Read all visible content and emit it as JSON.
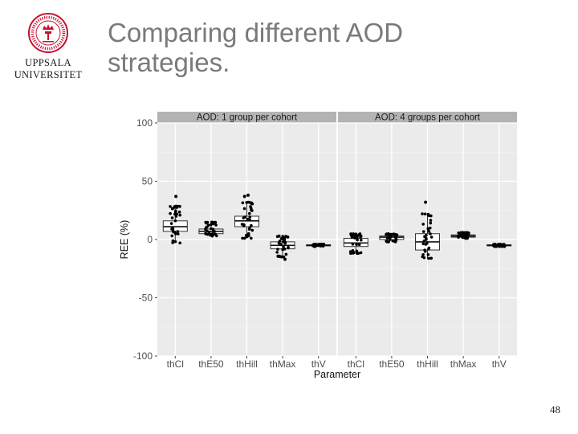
{
  "slide": {
    "title_lines": [
      "Comparing different AOD",
      "strategies."
    ],
    "slide_number": "48"
  },
  "logo": {
    "line1": "UPPSALA",
    "line2": "UNIVERSITET",
    "seal_color": "#c8102e"
  },
  "chart_data": {
    "type": "box",
    "xlabel": "Parameter",
    "ylabel": "REE (%)",
    "ylim": [
      -100,
      100
    ],
    "yticks": [
      -100,
      -50,
      0,
      50,
      100
    ],
    "categories": [
      "thCl",
      "thE50",
      "thHill",
      "thMax",
      "thV"
    ],
    "colors": {
      "panel_bg": "#ebebeb",
      "strip_bg": "#b3b3b3",
      "grid": "#ffffff",
      "box_fill": "#ffffff",
      "points": "#000000"
    },
    "panels": [
      {
        "strip": "AOD: 1 group per cohort",
        "boxes": [
          {
            "category": "thCl",
            "q1": 7,
            "median": 11,
            "q3": 16,
            "whisker_low": -3,
            "whisker_high": 29,
            "outliers": [
              37
            ]
          },
          {
            "category": "thE50",
            "q1": 5,
            "median": 7,
            "q3": 9,
            "whisker_low": 3,
            "whisker_high": 15,
            "outliers": []
          },
          {
            "category": "thHill",
            "q1": 11,
            "median": 16,
            "q3": 20,
            "whisker_low": 1,
            "whisker_high": 32,
            "outliers": [
              37,
              38
            ]
          },
          {
            "category": "thMax",
            "q1": -8,
            "median": -5,
            "q3": -2,
            "whisker_low": -15,
            "whisker_high": 3,
            "outliers": [
              -17
            ]
          },
          {
            "category": "thV",
            "q1": -5.5,
            "median": -5,
            "q3": -4.5,
            "whisker_low": -6,
            "whisker_high": -4,
            "outliers": []
          }
        ]
      },
      {
        "strip": "AOD: 4 groups per cohort",
        "boxes": [
          {
            "category": "thCl",
            "q1": -6,
            "median": -3,
            "q3": 1,
            "whisker_low": -12,
            "whisker_high": 5,
            "outliers": []
          },
          {
            "category": "thE50",
            "q1": 0,
            "median": 2,
            "q3": 3,
            "whisker_low": -2,
            "whisker_high": 5,
            "outliers": []
          },
          {
            "category": "thHill",
            "q1": -9,
            "median": -2,
            "q3": 5,
            "whisker_low": -17,
            "whisker_high": 22,
            "outliers": [
              32
            ]
          },
          {
            "category": "thMax",
            "q1": 2,
            "median": 3,
            "q3": 4,
            "whisker_low": 1,
            "whisker_high": 6,
            "outliers": []
          },
          {
            "category": "thV",
            "q1": -5.5,
            "median": -5,
            "q3": -4.5,
            "whisker_low": -6,
            "whisker_high": -4,
            "outliers": []
          }
        ]
      }
    ]
  }
}
